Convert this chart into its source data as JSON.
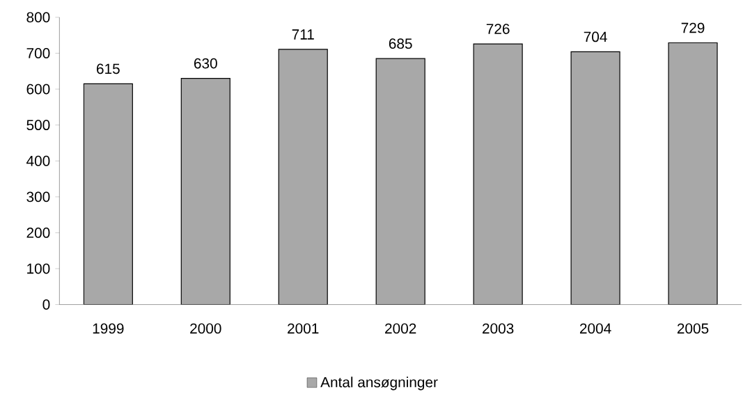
{
  "chart_data": {
    "type": "bar",
    "categories": [
      "1999",
      "2000",
      "2001",
      "2002",
      "2003",
      "2004",
      "2005"
    ],
    "series": [
      {
        "name": "Antal ansøgninger",
        "color": "#a8a8a8",
        "values": [
          615,
          630,
          711,
          685,
          726,
          704,
          729
        ]
      }
    ],
    "ylim": [
      0,
      800
    ],
    "yticks": [
      0,
      100,
      200,
      300,
      400,
      500,
      600,
      700,
      800
    ],
    "data_labels": true,
    "legend": "bottom",
    "grid": false
  }
}
